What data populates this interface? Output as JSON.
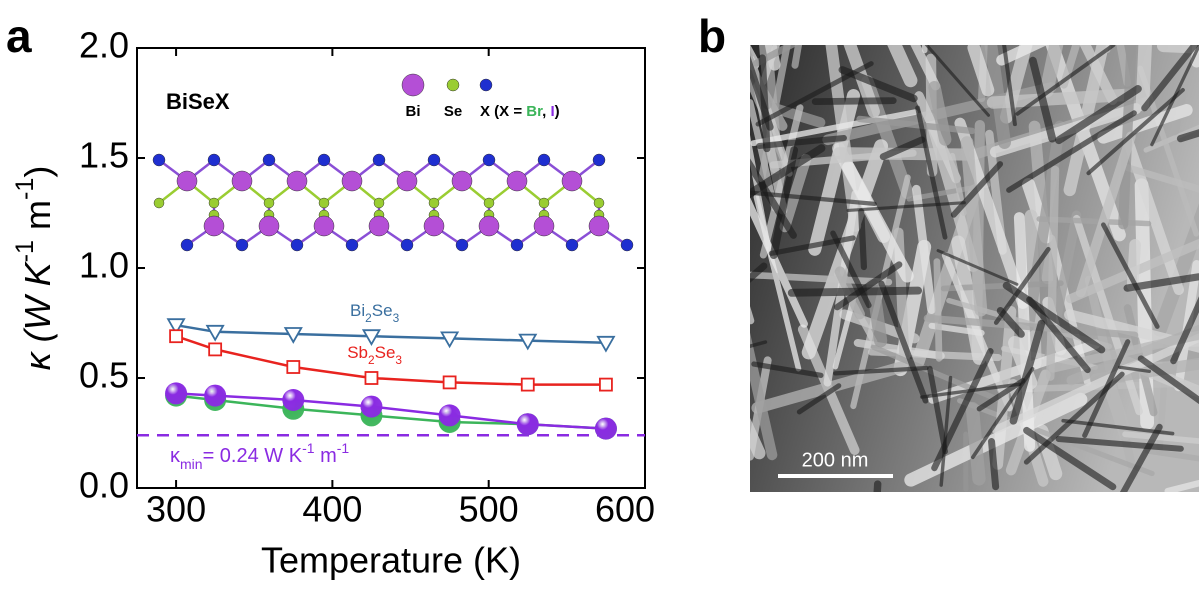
{
  "chart_data": {
    "type": "line",
    "panel_label": "a",
    "xlabel": "Temperature (K)",
    "ylabel": "κ (W K-1 m-1)",
    "x": [
      300,
      325,
      375,
      425,
      475,
      525,
      575
    ],
    "xlim": [
      275,
      600
    ],
    "xticks": [
      300,
      400,
      500,
      600
    ],
    "ylim": [
      0,
      2
    ],
    "yticks": [
      {
        "value": 0,
        "label": "0.0"
      },
      0.5,
      {
        "value": 1,
        "label": "1.0"
      },
      1.5,
      {
        "value": 2,
        "label": "2.0"
      }
    ],
    "series": [
      {
        "name": "Bi2Se3",
        "color": "#3a6f9f",
        "marker": "open-triangle-down",
        "values": [
          0.74,
          0.71,
          0.7,
          0.69,
          0.68,
          0.67,
          0.66
        ]
      },
      {
        "name": "Sb2Se3",
        "color": "#e8231f",
        "marker": "open-square",
        "values": [
          0.69,
          0.63,
          0.55,
          0.5,
          0.48,
          0.47,
          0.47
        ]
      },
      {
        "color": "#3cb55a",
        "marker": "sphere",
        "values": [
          0.42,
          0.4,
          0.36,
          0.33,
          0.3,
          0.29,
          0.27
        ]
      },
      {
        "color": "#8a2be2",
        "marker": "sphere",
        "values": [
          0.43,
          0.42,
          0.4,
          0.37,
          0.33,
          0.29,
          0.27
        ]
      }
    ],
    "reference_line": {
      "value": 0.24,
      "label": "κmin= 0.24 W K-1 m-1",
      "color": "#8a2be2"
    },
    "inset": {
      "title": "BiSeX",
      "legend": [
        {
          "label": "Bi",
          "color": "#b44fd6"
        },
        {
          "label": "Se",
          "color": "#9acd32"
        },
        {
          "label": "X (X = Br, I)",
          "color": "#1f2fd0"
        }
      ]
    }
  },
  "panel_b": {
    "panel_label": "b",
    "scale_bar": "200 nm"
  }
}
